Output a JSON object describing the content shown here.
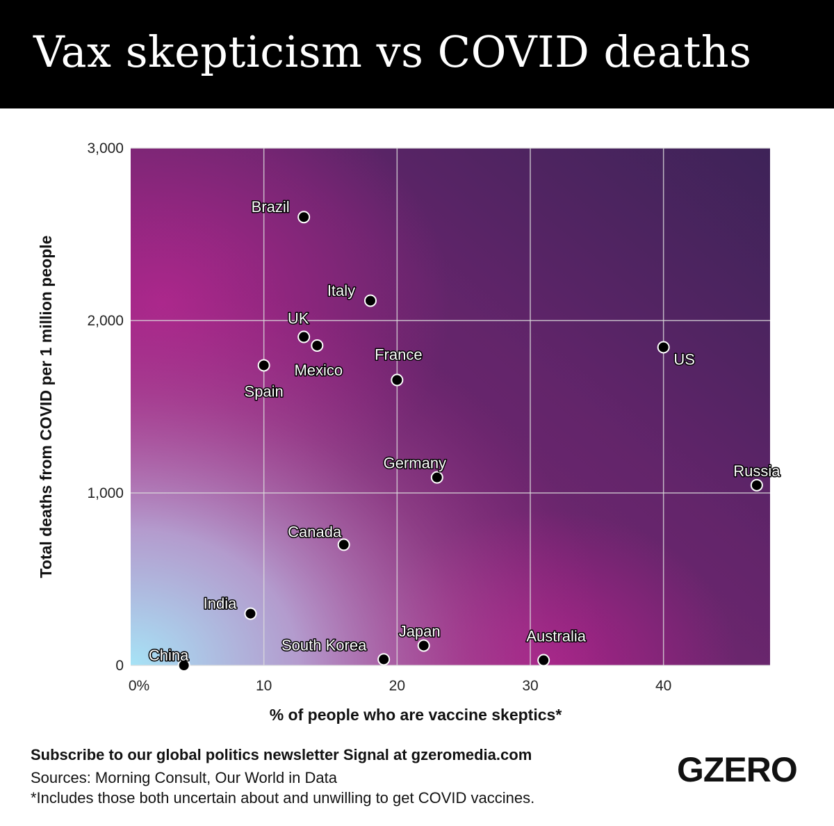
{
  "header": {
    "title": "Vax skepticism vs COVID deaths"
  },
  "chart_data": {
    "type": "scatter",
    "title": "Vax skepticism vs COVID deaths",
    "xlabel": "% of people who are vaccine skeptics*",
    "ylabel": "Total deaths from COVID per 1 million people",
    "xlim": [
      0,
      48
    ],
    "ylim": [
      0,
      3000
    ],
    "xticks": [
      0,
      10,
      20,
      30,
      40
    ],
    "xtick_labels": [
      "0%",
      "10",
      "20",
      "30",
      "40"
    ],
    "yticks": [
      0,
      1000,
      2000,
      3000
    ],
    "ytick_labels": [
      "0",
      "1,000",
      "2,000",
      "3,000"
    ],
    "grid": true,
    "points": [
      {
        "label": "Brazil",
        "x": 13,
        "y": 2600
      },
      {
        "label": "Italy",
        "x": 18,
        "y": 2115
      },
      {
        "label": "UK",
        "x": 13,
        "y": 1905
      },
      {
        "label": "Mexico",
        "x": 14,
        "y": 1855
      },
      {
        "label": "Spain",
        "x": 10,
        "y": 1740
      },
      {
        "label": "France",
        "x": 20,
        "y": 1655
      },
      {
        "label": "US",
        "x": 40,
        "y": 1845
      },
      {
        "label": "Germany",
        "x": 23,
        "y": 1090
      },
      {
        "label": "Russia",
        "x": 47,
        "y": 1045
      },
      {
        "label": "Canada",
        "x": 16,
        "y": 700
      },
      {
        "label": "India",
        "x": 9,
        "y": 300
      },
      {
        "label": "China",
        "x": 4,
        "y": 0
      },
      {
        "label": "South Korea",
        "x": 19,
        "y": 35
      },
      {
        "label": "Japan",
        "x": 22,
        "y": 115
      },
      {
        "label": "Australia",
        "x": 31,
        "y": 30
      }
    ]
  },
  "footer": {
    "subscribe": "Subscribe to our global politics newsletter Signal at gzeromedia.com",
    "sources": "Sources: Morning Consult, Our World in Data",
    "note": "*Includes those both uncertain about and unwilling to get COVID vaccines.",
    "logo": "GZERO"
  }
}
